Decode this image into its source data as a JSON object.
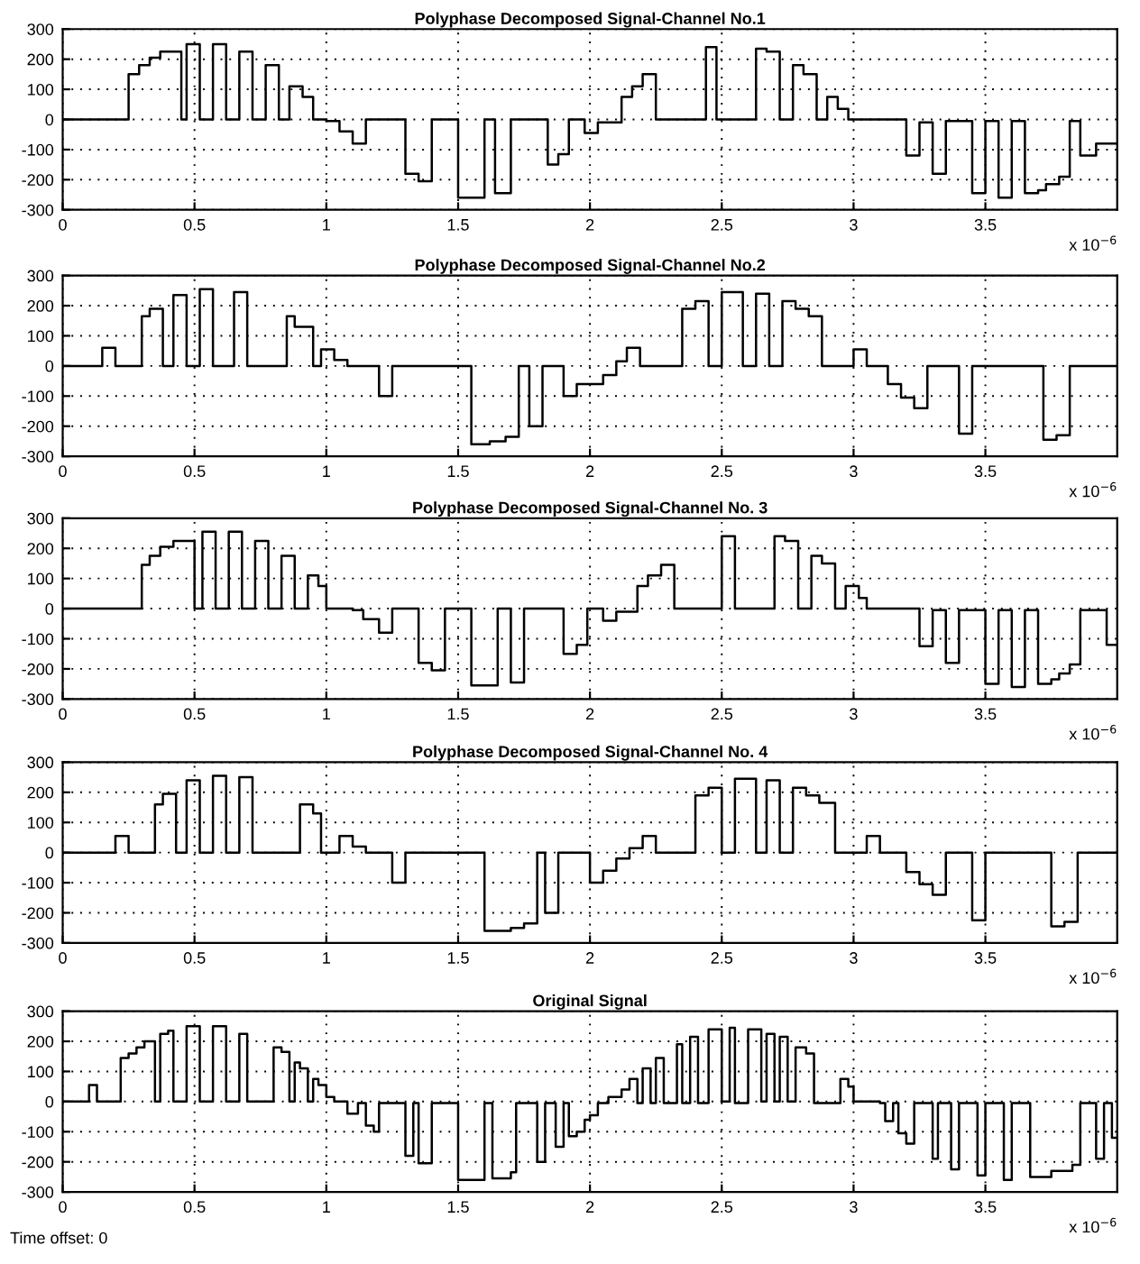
{
  "chart_data": [
    {
      "type": "step",
      "title": "Polyphase Decomposed Signal-Channel No.1",
      "xlim": [
        0,
        4
      ],
      "xticks": [
        0,
        0.5,
        1,
        1.5,
        2,
        2.5,
        3,
        3.5
      ],
      "ylim": [
        -300,
        300
      ],
      "yticks": [
        -300,
        -200,
        -100,
        0,
        100,
        200,
        300
      ],
      "grid": true,
      "annotations": [
        "x 10$^{−6}$"
      ],
      "x": [
        0,
        0.25,
        0.29,
        0.33,
        0.37,
        0.45,
        0.47,
        0.52,
        0.57,
        0.62,
        0.67,
        0.72,
        0.77,
        0.82,
        0.86,
        0.91,
        0.95,
        1.0,
        1.05,
        1.1,
        1.15,
        1.3,
        1.35,
        1.4,
        1.5,
        1.6,
        1.64,
        1.7,
        1.84,
        1.88,
        1.92,
        1.98,
        2.03,
        2.12,
        2.16,
        2.2,
        2.25,
        2.44,
        2.48,
        2.63,
        2.67,
        2.72,
        2.77,
        2.81,
        2.86,
        2.9,
        2.94,
        2.98,
        3.2,
        3.25,
        3.3,
        3.35,
        3.45,
        3.5,
        3.55,
        3.6,
        3.65,
        3.7,
        3.73,
        3.78,
        3.82,
        3.86,
        3.92,
        4.0
      ],
      "series": [
        {
          "color": "#000000",
          "values": [
            0,
            150,
            180,
            205,
            225,
            0,
            250,
            0,
            250,
            0,
            225,
            0,
            180,
            0,
            110,
            75,
            0,
            -5,
            -40,
            -80,
            0,
            -180,
            -205,
            0,
            -260,
            0,
            -245,
            0,
            -150,
            -115,
            0,
            -45,
            -10,
            75,
            110,
            150,
            0,
            240,
            0,
            235,
            225,
            0,
            180,
            150,
            0,
            75,
            35,
            0,
            -120,
            -10,
            -180,
            -5,
            -245,
            -5,
            -260,
            -5,
            -245,
            -235,
            -215,
            -190,
            -5,
            -120,
            -80,
            -80
          ]
        }
      ]
    },
    {
      "type": "step",
      "title": "Polyphase Decomposed Signal-Channel No.2",
      "xlim": [
        0,
        4
      ],
      "xticks": [
        0,
        0.5,
        1,
        1.5,
        2,
        2.5,
        3,
        3.5
      ],
      "ylim": [
        -300,
        300
      ],
      "yticks": [
        -300,
        -200,
        -100,
        0,
        100,
        200,
        300
      ],
      "grid": true,
      "annotations": [
        "x 10$^{−6}$"
      ],
      "x": [
        0,
        0.15,
        0.2,
        0.3,
        0.33,
        0.38,
        0.42,
        0.47,
        0.52,
        0.57,
        0.65,
        0.7,
        0.85,
        0.88,
        0.95,
        0.98,
        1.03,
        1.08,
        1.2,
        1.25,
        1.55,
        1.62,
        1.68,
        1.73,
        1.77,
        1.82,
        1.9,
        1.95,
        2.05,
        2.1,
        2.14,
        2.19,
        2.35,
        2.4,
        2.45,
        2.5,
        2.58,
        2.63,
        2.68,
        2.73,
        2.78,
        2.83,
        2.88,
        3.0,
        3.05,
        3.13,
        3.18,
        3.23,
        3.28,
        3.4,
        3.45,
        3.72,
        3.77,
        3.82,
        4.0
      ],
      "series": [
        {
          "color": "#000000",
          "values": [
            0,
            60,
            0,
            165,
            190,
            0,
            235,
            0,
            255,
            0,
            245,
            0,
            165,
            130,
            0,
            55,
            20,
            0,
            -100,
            0,
            -260,
            -250,
            -235,
            0,
            -200,
            0,
            -100,
            -60,
            -30,
            15,
            60,
            0,
            190,
            215,
            0,
            245,
            0,
            240,
            0,
            215,
            190,
            165,
            0,
            55,
            0,
            -60,
            -105,
            -140,
            0,
            -225,
            0,
            -245,
            -230,
            0,
            0
          ]
        }
      ]
    },
    {
      "type": "step",
      "title": "Polyphase Decomposed Signal-Channel No. 3",
      "xlim": [
        0,
        4
      ],
      "xticks": [
        0,
        0.5,
        1,
        1.5,
        2,
        2.5,
        3,
        3.5
      ],
      "ylim": [
        -300,
        300
      ],
      "yticks": [
        -300,
        -200,
        -100,
        0,
        100,
        200,
        300
      ],
      "grid": true,
      "annotations": [
        "x 10$^{−6}$"
      ],
      "x": [
        0,
        0.3,
        0.33,
        0.37,
        0.42,
        0.5,
        0.53,
        0.58,
        0.63,
        0.68,
        0.73,
        0.78,
        0.83,
        0.88,
        0.93,
        0.97,
        1.0,
        1.1,
        1.14,
        1.2,
        1.25,
        1.35,
        1.4,
        1.45,
        1.55,
        1.65,
        1.7,
        1.75,
        1.9,
        1.95,
        1.99,
        2.05,
        2.1,
        2.18,
        2.22,
        2.27,
        2.32,
        2.5,
        2.55,
        2.7,
        2.74,
        2.79,
        2.84,
        2.88,
        2.93,
        2.97,
        3.02,
        3.05,
        3.25,
        3.3,
        3.35,
        3.4,
        3.5,
        3.55,
        3.6,
        3.65,
        3.7,
        3.75,
        3.78,
        3.82,
        3.86,
        3.96,
        4.0
      ],
      "series": [
        {
          "color": "#000000",
          "values": [
            0,
            145,
            175,
            205,
            225,
            0,
            255,
            0,
            255,
            0,
            225,
            0,
            175,
            0,
            110,
            75,
            0,
            -5,
            -35,
            -80,
            0,
            -180,
            -205,
            0,
            -255,
            0,
            -245,
            0,
            -150,
            -120,
            0,
            -40,
            -10,
            75,
            110,
            145,
            0,
            240,
            0,
            240,
            225,
            0,
            175,
            150,
            0,
            75,
            35,
            0,
            -125,
            -5,
            -180,
            -5,
            -250,
            -5,
            -260,
            -5,
            -250,
            -235,
            -215,
            -185,
            -5,
            -120,
            -120
          ]
        }
      ]
    },
    {
      "type": "step",
      "title": "Polyphase Decomposed Signal-Channel No. 4",
      "xlim": [
        0,
        4
      ],
      "xticks": [
        0,
        0.5,
        1,
        1.5,
        2,
        2.5,
        3,
        3.5
      ],
      "ylim": [
        -300,
        300
      ],
      "yticks": [
        -300,
        -200,
        -100,
        0,
        100,
        200,
        300
      ],
      "grid": true,
      "annotations": [
        "x 10$^{−6}$"
      ],
      "x": [
        0,
        0.2,
        0.25,
        0.35,
        0.38,
        0.43,
        0.47,
        0.52,
        0.57,
        0.62,
        0.67,
        0.72,
        0.9,
        0.95,
        0.98,
        1.05,
        1.1,
        1.15,
        1.25,
        1.3,
        1.6,
        1.7,
        1.75,
        1.8,
        1.83,
        1.88,
        2.0,
        2.05,
        2.1,
        2.15,
        2.2,
        2.25,
        2.4,
        2.45,
        2.5,
        2.55,
        2.63,
        2.67,
        2.72,
        2.77,
        2.82,
        2.87,
        2.93,
        3.05,
        3.1,
        3.2,
        3.25,
        3.3,
        3.35,
        3.45,
        3.5,
        3.75,
        3.8,
        3.85,
        4.0
      ],
      "series": [
        {
          "color": "#000000",
          "values": [
            0,
            55,
            0,
            160,
            195,
            0,
            240,
            0,
            255,
            0,
            250,
            0,
            160,
            130,
            0,
            55,
            20,
            0,
            -100,
            0,
            -260,
            -250,
            -235,
            0,
            -200,
            0,
            -100,
            -60,
            -20,
            15,
            55,
            0,
            190,
            215,
            0,
            245,
            0,
            240,
            0,
            215,
            190,
            165,
            0,
            55,
            0,
            -65,
            -105,
            -140,
            0,
            -225,
            0,
            -245,
            -230,
            0,
            0
          ]
        }
      ]
    },
    {
      "type": "step",
      "title": "Original Signal",
      "xlim": [
        0,
        4
      ],
      "xticks": [
        0,
        0.5,
        1,
        1.5,
        2,
        2.5,
        3,
        3.5
      ],
      "ylim": [
        -300,
        300
      ],
      "yticks": [
        -300,
        -200,
        -100,
        0,
        100,
        200,
        300
      ],
      "grid": true,
      "annotations": [
        "x 10$^{−6}$",
        "Time offset: 0"
      ],
      "x": [
        0,
        0.1,
        0.13,
        0.22,
        0.25,
        0.28,
        0.31,
        0.35,
        0.37,
        0.4,
        0.42,
        0.47,
        0.52,
        0.57,
        0.62,
        0.67,
        0.7,
        0.8,
        0.83,
        0.86,
        0.88,
        0.9,
        0.93,
        0.95,
        0.97,
        1.0,
        1.03,
        1.08,
        1.12,
        1.15,
        1.18,
        1.2,
        1.3,
        1.33,
        1.35,
        1.4,
        1.5,
        1.6,
        1.63,
        1.7,
        1.72,
        1.8,
        1.83,
        1.87,
        1.9,
        1.92,
        1.95,
        1.98,
        2.0,
        2.03,
        2.07,
        2.12,
        2.15,
        2.18,
        2.2,
        2.23,
        2.25,
        2.28,
        2.33,
        2.35,
        2.38,
        2.41,
        2.45,
        2.5,
        2.53,
        2.55,
        2.6,
        2.65,
        2.67,
        2.7,
        2.72,
        2.75,
        2.78,
        2.82,
        2.85,
        2.95,
        2.98,
        3.0,
        3.1,
        3.12,
        3.15,
        3.17,
        3.2,
        3.23,
        3.3,
        3.32,
        3.37,
        3.4,
        3.47,
        3.5,
        3.57,
        3.6,
        3.67,
        3.75,
        3.83,
        3.86,
        3.92,
        3.95,
        3.98,
        4.0
      ],
      "series": [
        {
          "color": "#000000",
          "values": [
            0,
            55,
            0,
            145,
            160,
            180,
            200,
            0,
            225,
            235,
            0,
            250,
            0,
            250,
            0,
            225,
            0,
            180,
            165,
            0,
            130,
            110,
            0,
            75,
            55,
            15,
            0,
            -40,
            -5,
            -80,
            -100,
            -5,
            -180,
            -5,
            -205,
            -5,
            -260,
            -5,
            -255,
            -235,
            -5,
            -200,
            -5,
            -150,
            -5,
            -115,
            -100,
            -60,
            -45,
            -5,
            15,
            40,
            75,
            -5,
            110,
            -5,
            145,
            -5,
            190,
            -5,
            215,
            -5,
            240,
            0,
            245,
            -5,
            240,
            0,
            225,
            0,
            215,
            0,
            180,
            160,
            -5,
            75,
            50,
            0,
            -5,
            -65,
            -5,
            -105,
            -140,
            -5,
            -190,
            -5,
            -225,
            -5,
            -245,
            -5,
            -260,
            -5,
            -250,
            -230,
            -210,
            -5,
            -190,
            -5,
            -120,
            -120
          ]
        }
      ]
    }
  ]
}
